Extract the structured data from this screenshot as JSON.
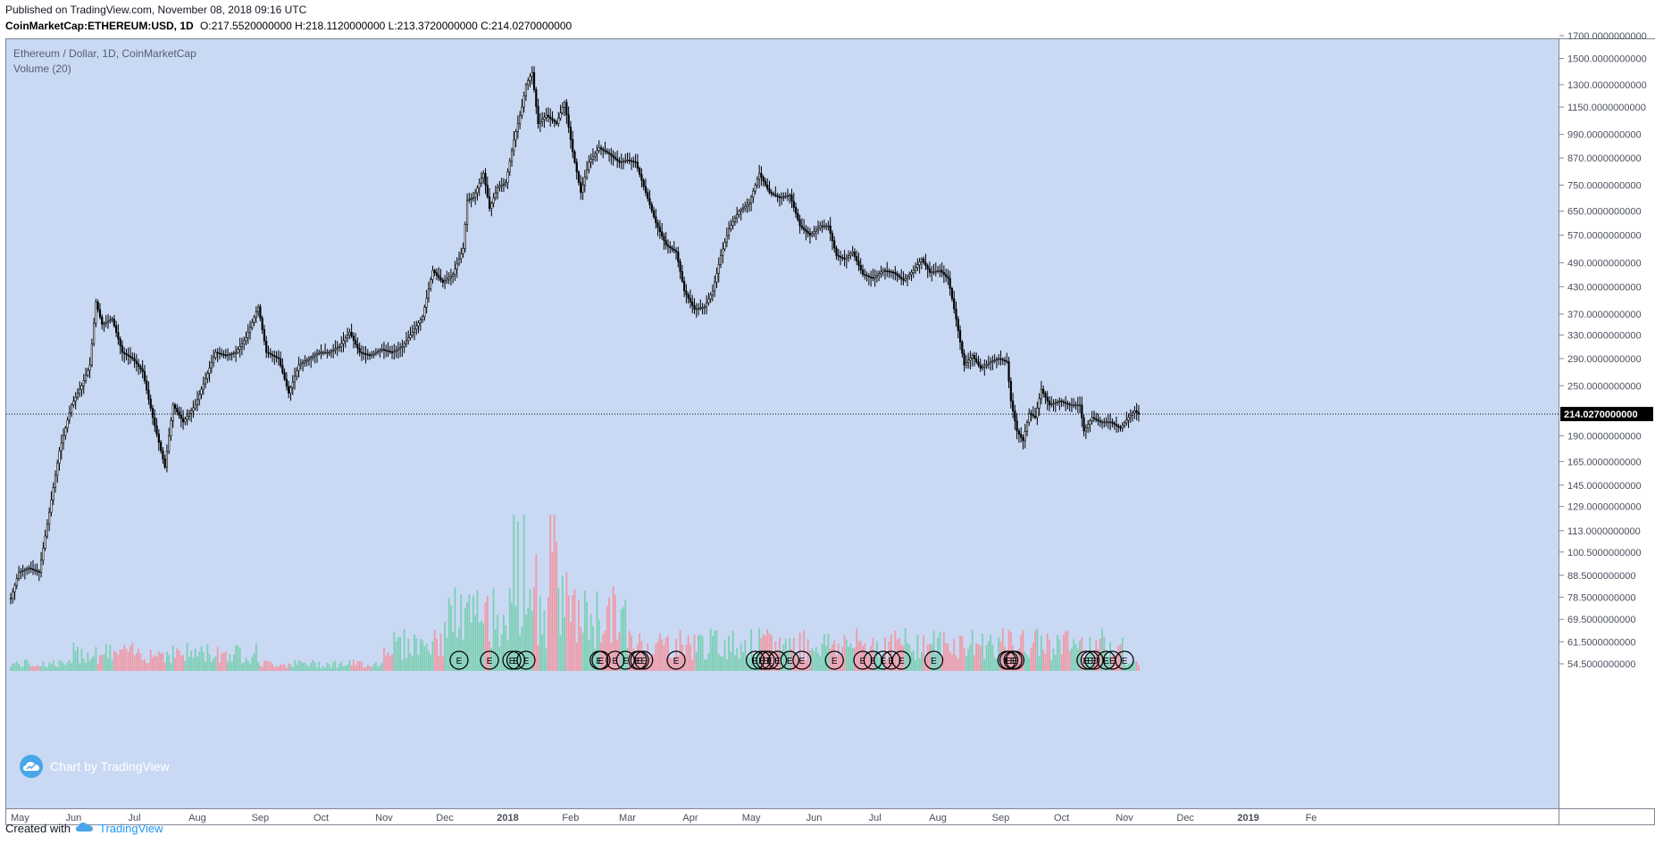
{
  "header": {
    "published": "Published on TradingView.com, November 08, 2018 09:16 UTC",
    "symbol": "CoinMarketCap:ETHEREUM:USD, 1D",
    "ohlc": "O:217.5520000000 H:218.1120000000 L:213.3720000000 C:214.0270000000"
  },
  "legend": {
    "series_title": "Ethereum / Dollar, 1D, CoinMarketCap",
    "volume_title": "Volume (20)"
  },
  "watermark": {
    "label": "Chart by TradingView"
  },
  "footer": {
    "created_with": "Created with",
    "brand": "TradingView"
  },
  "colors": {
    "background": "#c9d9f4",
    "candle": "#000000",
    "volume_up": "#7dcfb4",
    "volume_down": "#ef9aa6",
    "last_price_bg": "#000000"
  },
  "icons": {
    "watermark": "tradingview-cloud-icon",
    "event_marker": "earnings-e-icon"
  },
  "chart_data": {
    "type": "candlestick",
    "title": "Ethereum / Dollar, 1D, CoinMarketCap",
    "price_scale": "log",
    "ylim": [
      52,
      1750
    ],
    "y_tick_labels": [
      "1700.0000000000",
      "1500.0000000000",
      "1300.0000000000",
      "1150.0000000000",
      "990.0000000000",
      "870.0000000000",
      "750.0000000000",
      "650.0000000000",
      "570.0000000000",
      "490.0000000000",
      "430.0000000000",
      "370.0000000000",
      "330.0000000000",
      "290.0000000000",
      "250.0000000000",
      "214.0270000000",
      "190.0000000000",
      "165.0000000000",
      "145.0000000000",
      "129.0000000000",
      "113.0000000000",
      "100.5000000000",
      "88.5000000000",
      "78.5000000000",
      "69.5000000000",
      "61.5000000000",
      "54.5000000000"
    ],
    "x_tick_labels": [
      "May",
      "Jun",
      "Jul",
      "Aug",
      "Sep",
      "Oct",
      "Nov",
      "Dec",
      "2018",
      "Feb",
      "Mar",
      "Apr",
      "May",
      "Jun",
      "Jul",
      "Aug",
      "Sep",
      "Oct",
      "Nov",
      "Dec",
      "2019",
      "Fe"
    ],
    "last_price": 214.027,
    "last_price_label": "214.0270000000",
    "price_path": [
      [
        "2017-05-01",
        78
      ],
      [
        "2017-05-05",
        90
      ],
      [
        "2017-05-10",
        92
      ],
      [
        "2017-05-15",
        90
      ],
      [
        "2017-05-20",
        125
      ],
      [
        "2017-05-25",
        175
      ],
      [
        "2017-05-31",
        225
      ],
      [
        "2017-06-05",
        250
      ],
      [
        "2017-06-09",
        280
      ],
      [
        "2017-06-12",
        395
      ],
      [
        "2017-06-15",
        350
      ],
      [
        "2017-06-20",
        360
      ],
      [
        "2017-06-25",
        300
      ],
      [
        "2017-06-30",
        290
      ],
      [
        "2017-07-05",
        270
      ],
      [
        "2017-07-10",
        210
      ],
      [
        "2017-07-16",
        160
      ],
      [
        "2017-07-20",
        225
      ],
      [
        "2017-07-25",
        205
      ],
      [
        "2017-07-31",
        225
      ],
      [
        "2017-08-05",
        260
      ],
      [
        "2017-08-10",
        300
      ],
      [
        "2017-08-15",
        295
      ],
      [
        "2017-08-20",
        300
      ],
      [
        "2017-08-25",
        325
      ],
      [
        "2017-08-31",
        385
      ],
      [
        "2017-09-04",
        300
      ],
      [
        "2017-09-10",
        290
      ],
      [
        "2017-09-15",
        240
      ],
      [
        "2017-09-20",
        280
      ],
      [
        "2017-09-25",
        290
      ],
      [
        "2017-09-30",
        300
      ],
      [
        "2017-10-05",
        300
      ],
      [
        "2017-10-10",
        310
      ],
      [
        "2017-10-15",
        335
      ],
      [
        "2017-10-20",
        300
      ],
      [
        "2017-10-25",
        295
      ],
      [
        "2017-10-31",
        305
      ],
      [
        "2017-11-05",
        300
      ],
      [
        "2017-11-10",
        310
      ],
      [
        "2017-11-15",
        335
      ],
      [
        "2017-11-20",
        365
      ],
      [
        "2017-11-25",
        470
      ],
      [
        "2017-11-30",
        440
      ],
      [
        "2017-12-05",
        460
      ],
      [
        "2017-12-10",
        530
      ],
      [
        "2017-12-12",
        690
      ],
      [
        "2017-12-15",
        700
      ],
      [
        "2017-12-20",
        800
      ],
      [
        "2017-12-23",
        660
      ],
      [
        "2017-12-27",
        740
      ],
      [
        "2017-12-31",
        760
      ],
      [
        "2018-01-04",
        960
      ],
      [
        "2018-01-08",
        1150
      ],
      [
        "2018-01-10",
        1300
      ],
      [
        "2018-01-13",
        1390
      ],
      [
        "2018-01-16",
        1050
      ],
      [
        "2018-01-20",
        1100
      ],
      [
        "2018-01-25",
        1050
      ],
      [
        "2018-01-29",
        1180
      ],
      [
        "2018-02-02",
        900
      ],
      [
        "2018-02-06",
        720
      ],
      [
        "2018-02-10",
        850
      ],
      [
        "2018-02-15",
        920
      ],
      [
        "2018-02-20",
        890
      ],
      [
        "2018-02-25",
        850
      ],
      [
        "2018-03-01",
        860
      ],
      [
        "2018-03-05",
        850
      ],
      [
        "2018-03-10",
        720
      ],
      [
        "2018-03-15",
        610
      ],
      [
        "2018-03-20",
        540
      ],
      [
        "2018-03-25",
        520
      ],
      [
        "2018-03-29",
        420
      ],
      [
        "2018-04-03",
        380
      ],
      [
        "2018-04-08",
        385
      ],
      [
        "2018-04-12",
        420
      ],
      [
        "2018-04-16",
        510
      ],
      [
        "2018-04-20",
        590
      ],
      [
        "2018-04-25",
        650
      ],
      [
        "2018-04-30",
        680
      ],
      [
        "2018-05-05",
        800
      ],
      [
        "2018-05-10",
        720
      ],
      [
        "2018-05-15",
        700
      ],
      [
        "2018-05-20",
        710
      ],
      [
        "2018-05-25",
        600
      ],
      [
        "2018-05-30",
        570
      ],
      [
        "2018-06-04",
        600
      ],
      [
        "2018-06-08",
        600
      ],
      [
        "2018-06-12",
        510
      ],
      [
        "2018-06-16",
        500
      ],
      [
        "2018-06-20",
        520
      ],
      [
        "2018-06-25",
        460
      ],
      [
        "2018-06-30",
        450
      ],
      [
        "2018-07-05",
        470
      ],
      [
        "2018-07-10",
        465
      ],
      [
        "2018-07-15",
        445
      ],
      [
        "2018-07-20",
        470
      ],
      [
        "2018-07-24",
        500
      ],
      [
        "2018-07-28",
        465
      ],
      [
        "2018-08-02",
        470
      ],
      [
        "2018-08-06",
        450
      ],
      [
        "2018-08-10",
        360
      ],
      [
        "2018-08-14",
        280
      ],
      [
        "2018-08-18",
        295
      ],
      [
        "2018-08-22",
        275
      ],
      [
        "2018-08-27",
        285
      ],
      [
        "2018-08-31",
        290
      ],
      [
        "2018-09-04",
        285
      ],
      [
        "2018-09-06",
        230
      ],
      [
        "2018-09-09",
        195
      ],
      [
        "2018-09-12",
        185
      ],
      [
        "2018-09-15",
        215
      ],
      [
        "2018-09-18",
        210
      ],
      [
        "2018-09-21",
        245
      ],
      [
        "2018-09-25",
        225
      ],
      [
        "2018-09-30",
        230
      ],
      [
        "2018-10-05",
        225
      ],
      [
        "2018-10-10",
        225
      ],
      [
        "2018-10-12",
        195
      ],
      [
        "2018-10-16",
        210
      ],
      [
        "2018-10-20",
        205
      ],
      [
        "2018-10-25",
        205
      ],
      [
        "2018-10-30",
        198
      ],
      [
        "2018-11-03",
        210
      ],
      [
        "2018-11-06",
        218
      ],
      [
        "2018-11-07",
        216
      ],
      [
        "2018-11-08",
        214.027
      ]
    ],
    "event_markers": [
      "2017-12-08",
      "2017-12-23",
      "2018-01-03",
      "2018-01-05",
      "2018-01-10",
      "2018-02-15",
      "2018-02-16",
      "2018-02-23",
      "2018-02-28",
      "2018-03-06",
      "2018-03-07",
      "2018-03-09",
      "2018-03-25",
      "2018-05-03",
      "2018-05-06",
      "2018-05-08",
      "2018-05-10",
      "2018-05-14",
      "2018-05-20",
      "2018-05-26",
      "2018-06-11",
      "2018-06-25",
      "2018-06-30",
      "2018-07-05",
      "2018-07-09",
      "2018-07-14",
      "2018-07-30",
      "2018-09-04",
      "2018-09-05",
      "2018-09-07",
      "2018-09-08",
      "2018-10-13",
      "2018-10-15",
      "2018-10-17",
      "2018-10-23",
      "2018-10-26",
      "2018-11-01"
    ]
  }
}
